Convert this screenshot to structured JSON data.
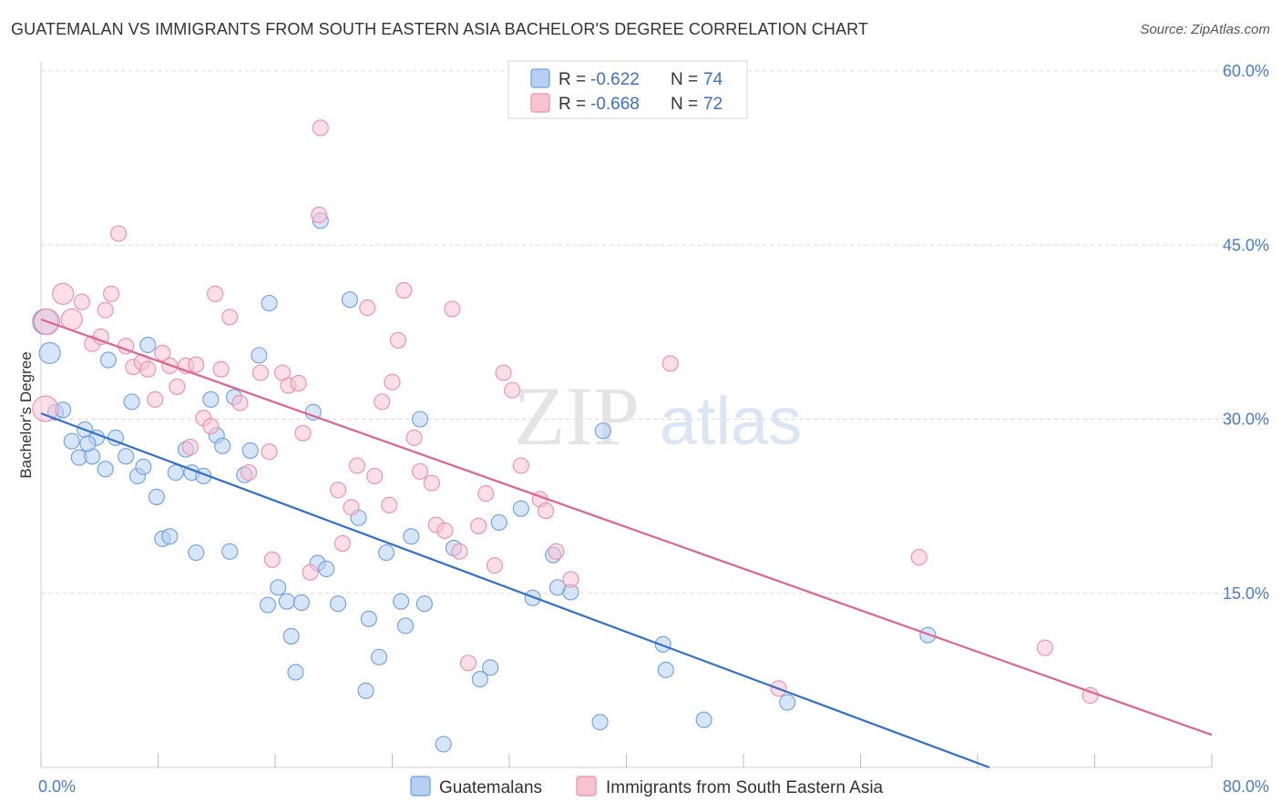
{
  "title": "GUATEMALAN VS IMMIGRANTS FROM SOUTH EASTERN ASIA BACHELOR'S DEGREE CORRELATION CHART",
  "source": "Source: ZipAtlas.com",
  "watermark": {
    "zip": "ZIP",
    "atlas": "atlas"
  },
  "colors": {
    "blue_fill": "#b7cff2",
    "blue_stroke": "#6e9fe0",
    "blue_line": "#2f6fd0",
    "pink_fill": "#f7c3d3",
    "pink_stroke": "#ec8fab",
    "pink_line": "#e0628d",
    "grid": "#d9d9d9",
    "tick_text": "#4a7cc9"
  },
  "legend": {
    "rows": [
      {
        "r_label": "R =",
        "r_value": "-0.622",
        "n_label": "N =",
        "n_value": "74"
      },
      {
        "r_label": "R =",
        "r_value": "-0.668",
        "n_label": "N =",
        "n_value": "72"
      }
    ]
  },
  "chart_data": {
    "type": "scatter",
    "ylabel": "Bachelor's Degree",
    "xlabel": "",
    "xlim": [
      0,
      80
    ],
    "ylim": [
      0,
      60
    ],
    "y_ticks": [
      {
        "value": 15,
        "label": "15.0%"
      },
      {
        "value": 30,
        "label": "30.0%"
      },
      {
        "value": 45,
        "label": "45.0%"
      },
      {
        "value": 60,
        "label": "60.0%"
      }
    ],
    "x_tick_labels": [
      {
        "value": 0,
        "label": "0.0%"
      },
      {
        "value": 80,
        "label": "80.0%"
      }
    ],
    "x_minor_ticks": [
      0,
      8,
      16,
      24,
      32,
      40,
      48,
      56,
      64,
      72,
      80
    ],
    "legend_position": "top-center",
    "series": [
      {
        "name": "Guatemalans",
        "color": "#6e9fe0",
        "trend": {
          "x": [
            0,
            64.8
          ],
          "y": [
            30.5,
            0
          ]
        },
        "points": [
          [
            0.3,
            38.4,
            3
          ],
          [
            0.6,
            35.7,
            2
          ],
          [
            1.0,
            30.6,
            1
          ],
          [
            1.5,
            30.8,
            1
          ],
          [
            2.1,
            28.1,
            1
          ],
          [
            2.6,
            26.7,
            1
          ],
          [
            3.0,
            29.1,
            1
          ],
          [
            3.5,
            26.8,
            1
          ],
          [
            3.8,
            28.4,
            1
          ],
          [
            4.4,
            25.7,
            1
          ],
          [
            4.6,
            35.1,
            1
          ],
          [
            5.1,
            28.4,
            1
          ],
          [
            5.8,
            26.8,
            1
          ],
          [
            6.2,
            31.5,
            1
          ],
          [
            6.6,
            25.1,
            1
          ],
          [
            7.0,
            25.9,
            1
          ],
          [
            7.3,
            36.4,
            1
          ],
          [
            7.9,
            23.3,
            1
          ],
          [
            8.3,
            19.7,
            1
          ],
          [
            8.8,
            19.9,
            1
          ],
          [
            9.2,
            25.4,
            1
          ],
          [
            9.9,
            27.4,
            1
          ],
          [
            10.3,
            25.4,
            1
          ],
          [
            10.6,
            18.5,
            1
          ],
          [
            11.1,
            25.1,
            1
          ],
          [
            11.6,
            31.7,
            1
          ],
          [
            12.0,
            28.6,
            1
          ],
          [
            12.4,
            27.7,
            1
          ],
          [
            12.9,
            18.6,
            1
          ],
          [
            13.2,
            31.9,
            1
          ],
          [
            13.9,
            25.2,
            1
          ],
          [
            14.3,
            27.3,
            1
          ],
          [
            14.9,
            35.5,
            1
          ],
          [
            15.5,
            14.0,
            1
          ],
          [
            15.6,
            40.0,
            1
          ],
          [
            16.2,
            15.5,
            1
          ],
          [
            16.8,
            14.3,
            1
          ],
          [
            17.1,
            11.3,
            1
          ],
          [
            17.4,
            8.2,
            1
          ],
          [
            17.8,
            14.2,
            1
          ],
          [
            18.6,
            30.6,
            1
          ],
          [
            18.9,
            17.6,
            1
          ],
          [
            19.1,
            47.1,
            1
          ],
          [
            19.5,
            17.1,
            1
          ],
          [
            20.3,
            14.1,
            1
          ],
          [
            21.1,
            40.3,
            1
          ],
          [
            21.7,
            21.5,
            1
          ],
          [
            22.2,
            6.6,
            1
          ],
          [
            22.4,
            12.8,
            1
          ],
          [
            23.1,
            9.5,
            1
          ],
          [
            23.6,
            18.5,
            1
          ],
          [
            24.6,
            14.3,
            1
          ],
          [
            24.9,
            12.2,
            1
          ],
          [
            25.3,
            19.9,
            1
          ],
          [
            25.9,
            30.0,
            1
          ],
          [
            26.2,
            14.1,
            1
          ],
          [
            27.5,
            2.0,
            1
          ],
          [
            28.2,
            18.9,
            1
          ],
          [
            30.0,
            7.6,
            1
          ],
          [
            30.7,
            8.6,
            1
          ],
          [
            31.3,
            21.1,
            1
          ],
          [
            32.8,
            22.3,
            1
          ],
          [
            33.6,
            14.6,
            1
          ],
          [
            35.0,
            18.3,
            1
          ],
          [
            35.3,
            15.5,
            1
          ],
          [
            36.2,
            15.1,
            1
          ],
          [
            38.2,
            3.9,
            1
          ],
          [
            38.4,
            29.0,
            1
          ],
          [
            42.5,
            10.6,
            1
          ],
          [
            42.7,
            8.4,
            1
          ],
          [
            45.3,
            4.1,
            1
          ],
          [
            51.0,
            5.6,
            1
          ],
          [
            60.6,
            11.4,
            1
          ],
          [
            3.2,
            27.9,
            1
          ]
        ]
      },
      {
        "name": "Immigrants from South Eastern Asia",
        "color": "#ec8fab",
        "trend": {
          "x": [
            0,
            80
          ],
          "y": [
            38.6,
            2.8
          ]
        },
        "points": [
          [
            0.3,
            30.9,
            3
          ],
          [
            0.4,
            38.4,
            3
          ],
          [
            1.5,
            40.8,
            2
          ],
          [
            2.1,
            38.6,
            2
          ],
          [
            2.8,
            40.1,
            1
          ],
          [
            3.5,
            36.5,
            1
          ],
          [
            4.1,
            37.1,
            1
          ],
          [
            4.4,
            39.4,
            1
          ],
          [
            4.8,
            40.8,
            1
          ],
          [
            5.3,
            46.0,
            1
          ],
          [
            5.8,
            36.3,
            1
          ],
          [
            6.3,
            34.5,
            1
          ],
          [
            6.9,
            34.9,
            1
          ],
          [
            7.3,
            34.3,
            1
          ],
          [
            7.8,
            31.7,
            1
          ],
          [
            8.3,
            35.7,
            1
          ],
          [
            8.8,
            34.6,
            1
          ],
          [
            9.3,
            32.8,
            1
          ],
          [
            9.9,
            34.6,
            1
          ],
          [
            10.2,
            27.6,
            1
          ],
          [
            10.6,
            34.7,
            1
          ],
          [
            11.1,
            30.1,
            1
          ],
          [
            11.6,
            29.4,
            1
          ],
          [
            11.9,
            40.8,
            1
          ],
          [
            12.3,
            34.3,
            1
          ],
          [
            12.9,
            38.8,
            1
          ],
          [
            13.6,
            31.4,
            1
          ],
          [
            14.2,
            25.4,
            1
          ],
          [
            15.0,
            34.0,
            1
          ],
          [
            15.6,
            27.2,
            1
          ],
          [
            15.8,
            17.9,
            1
          ],
          [
            16.5,
            34.0,
            1
          ],
          [
            16.9,
            32.9,
            1
          ],
          [
            17.6,
            33.1,
            1
          ],
          [
            17.9,
            28.8,
            1
          ],
          [
            18.4,
            16.8,
            1
          ],
          [
            19.0,
            47.6,
            1
          ],
          [
            19.1,
            55.1,
            1
          ],
          [
            20.3,
            23.9,
            1
          ],
          [
            20.6,
            19.3,
            1
          ],
          [
            21.2,
            22.4,
            1
          ],
          [
            21.6,
            26.0,
            1
          ],
          [
            22.3,
            39.6,
            1
          ],
          [
            22.8,
            25.1,
            1
          ],
          [
            23.3,
            31.5,
            1
          ],
          [
            23.8,
            22.6,
            1
          ],
          [
            24.4,
            36.8,
            1
          ],
          [
            24.8,
            41.1,
            1
          ],
          [
            25.5,
            28.4,
            1
          ],
          [
            25.9,
            25.5,
            1
          ],
          [
            26.7,
            24.5,
            1
          ],
          [
            27.0,
            20.9,
            1
          ],
          [
            27.6,
            20.4,
            1
          ],
          [
            28.1,
            39.5,
            1
          ],
          [
            28.6,
            18.6,
            1
          ],
          [
            29.2,
            9.0,
            1
          ],
          [
            29.9,
            20.8,
            1
          ],
          [
            30.4,
            23.6,
            1
          ],
          [
            31.0,
            17.4,
            1
          ],
          [
            31.6,
            34.0,
            1
          ],
          [
            32.2,
            32.5,
            1
          ],
          [
            32.8,
            26.0,
            1
          ],
          [
            34.1,
            23.1,
            1
          ],
          [
            34.5,
            22.1,
            1
          ],
          [
            35.2,
            18.6,
            1
          ],
          [
            36.2,
            16.2,
            1
          ],
          [
            43.0,
            34.8,
            1
          ],
          [
            50.4,
            6.8,
            1
          ],
          [
            60.0,
            18.1,
            1
          ],
          [
            68.6,
            10.3,
            1
          ],
          [
            71.7,
            6.2,
            1
          ],
          [
            24.0,
            33.2,
            1
          ]
        ]
      }
    ]
  }
}
